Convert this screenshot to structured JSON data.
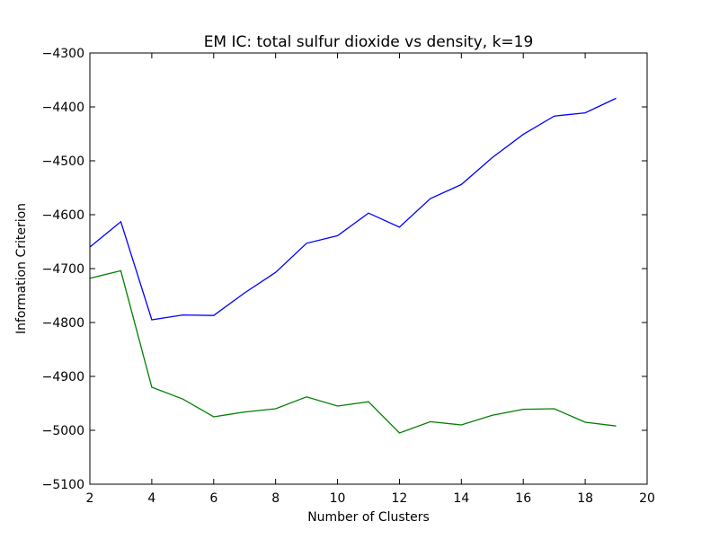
{
  "chart_data": {
    "type": "line",
    "title": "EM IC: total sulfur dioxide vs density, k=19",
    "xlabel": "Number of Clusters",
    "ylabel": "Information Criterion",
    "xlim": [
      2,
      20
    ],
    "ylim": [
      -5100,
      -4300
    ],
    "xticks": [
      2,
      4,
      6,
      8,
      10,
      12,
      14,
      16,
      18,
      20
    ],
    "yticks": [
      -4300,
      -4400,
      -4500,
      -4600,
      -4700,
      -4800,
      -4900,
      -5000,
      -5100
    ],
    "grid": false,
    "x": [
      2,
      3,
      4,
      5,
      6,
      7,
      8,
      9,
      10,
      11,
      12,
      13,
      14,
      15,
      16,
      17,
      18,
      19
    ],
    "series": [
      {
        "color": "#0000ff",
        "values": [
          -4660,
          -4613,
          -4795,
          -4786,
          -4787,
          -4745,
          -4707,
          -4653,
          -4639,
          -4597,
          -4623,
          -4570,
          -4544,
          -4494,
          -4451,
          -4417,
          -4411,
          -4384
        ]
      },
      {
        "color": "#008000",
        "values": [
          -4718,
          -4704,
          -4920,
          -4942,
          -4975,
          -4966,
          -4960,
          -4938,
          -4955,
          -4947,
          -5005,
          -4984,
          -4990,
          -4972,
          -4961,
          -4960,
          -4985,
          -4992
        ]
      }
    ]
  }
}
